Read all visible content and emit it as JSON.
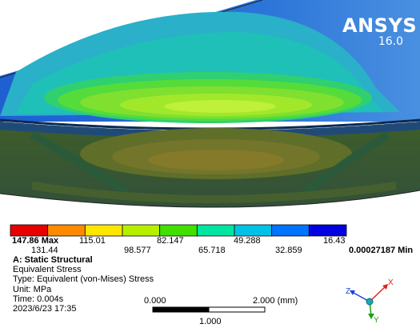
{
  "logo": {
    "name": "ANSYS",
    "version": "16.0"
  },
  "legend": {
    "max_label": "147.86 Max",
    "min_label": "0.00027187 Min",
    "upper_values": [
      "115.01",
      "82.147",
      "49.288",
      "16.43"
    ],
    "lower_values": [
      "131.44",
      "98.577",
      "65.718",
      "32.859"
    ],
    "colors": [
      "#e60000",
      "#ff8a00",
      "#ffe600",
      "#b6f000",
      "#42e000",
      "#00e6a0",
      "#00c2e6",
      "#0073ff",
      "#0000e0"
    ]
  },
  "info": {
    "analysis": "A: Static Structural",
    "result": "Equivalent Stress",
    "type": "Type: Equivalent (von-Mises) Stress",
    "unit": "Unit: MPa",
    "time": "Time: 0.004s",
    "datetime": "2023/6/23 17:35"
  },
  "scale": {
    "start": "0.000",
    "end": "2.000 (mm)",
    "mid": "1.000"
  },
  "triad": {
    "y": "Y",
    "x": "X",
    "z": "Z"
  },
  "icons": {
    "triad": "axis-triad-icon"
  }
}
